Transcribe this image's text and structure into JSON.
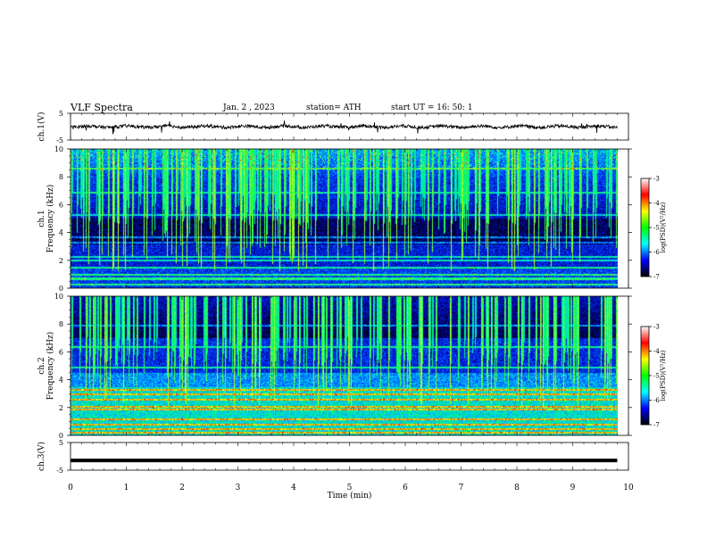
{
  "header": {
    "title": "VLF  Spectra",
    "date": "Jan. 2  , 2023",
    "station": "station= ATH",
    "start": "start  UT  =   16: 50: 1"
  },
  "chart_data": {
    "type": "heatmap",
    "xlabel": "Time  (min)",
    "xlim": [
      0,
      10
    ],
    "x_ticks": [
      "0",
      "1",
      "2",
      "3",
      "4",
      "5",
      "6",
      "7",
      "8",
      "9",
      "10"
    ],
    "data_end_min": 9.8,
    "panels": {
      "ch1_wave": {
        "ylabel": "ch.1(V)",
        "ylim": [
          -5,
          5
        ],
        "y_ticks": [
          "5",
          "-5"
        ],
        "trace_level": 0
      },
      "ch1_spec": {
        "ylabel_channel": "ch.1",
        "ylabel": "Frequency  (kHz)",
        "ylim": [
          0,
          10
        ],
        "y_ticks": [
          "0",
          "2",
          "4",
          "6",
          "8",
          "10"
        ]
      },
      "ch2_spec": {
        "ylabel_channel": "ch.2",
        "ylabel": "Frequency  (kHz)",
        "ylim": [
          0,
          10
        ],
        "y_ticks": [
          "0",
          "2",
          "4",
          "6",
          "8",
          "10"
        ]
      },
      "ch3_wave": {
        "ylabel": "ch.3(V)",
        "ylim": [
          -5,
          5
        ],
        "y_ticks": [
          "5",
          "-5"
        ],
        "trace_level": -1.5
      }
    },
    "colorbar": {
      "label": "log(PSD)(V²/Hz)",
      "range": [
        -7,
        -3
      ],
      "ticks": [
        "-3",
        "-4",
        "-5",
        "-6",
        "-7"
      ],
      "colors": [
        "#ffffff",
        "#ff0000",
        "#ffff00",
        "#00ff00",
        "#00ffff",
        "#0000ff",
        "#000000"
      ]
    }
  }
}
